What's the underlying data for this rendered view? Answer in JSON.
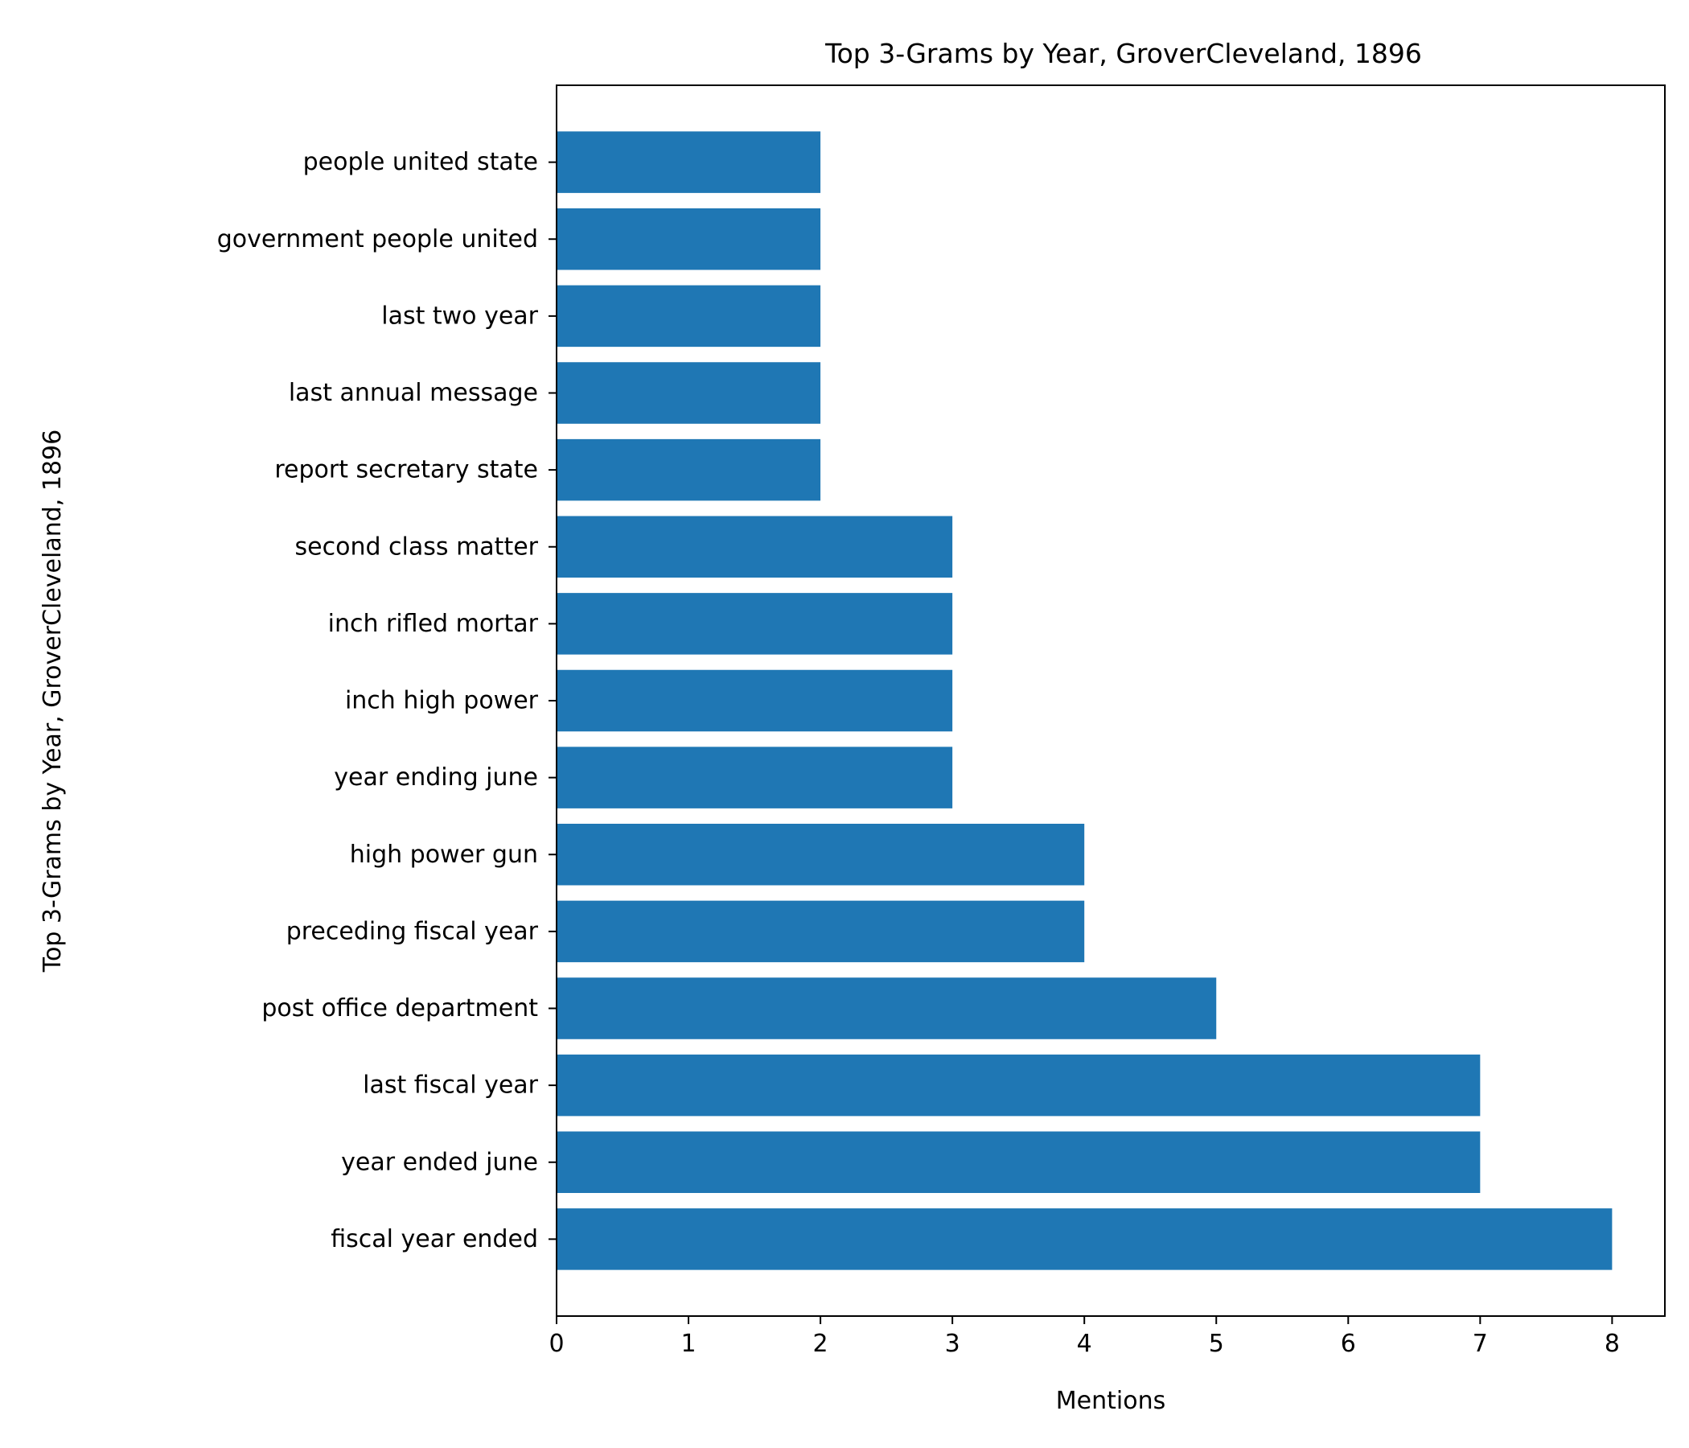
{
  "chart_data": {
    "type": "bar",
    "orientation": "horizontal",
    "title": "Top 3-Grams by Year, GroverCleveland, 1896",
    "xlabel": "Mentions",
    "ylabel": "Top 3-Grams by Year, GroverCleveland, 1896",
    "categories": [
      "fiscal year ended",
      "year ended june",
      "last fiscal year",
      "post office department",
      "preceding fiscal year",
      "high power gun",
      "year ending june",
      "inch high power",
      "inch rifled mortar",
      "second class matter",
      "report secretary state",
      "last annual message",
      "last two year",
      "government people united",
      "people united state"
    ],
    "values": [
      8,
      7,
      7,
      5,
      4,
      4,
      3,
      3,
      3,
      3,
      2,
      2,
      2,
      2,
      2
    ],
    "xlim": [
      0,
      8.4
    ],
    "xticks": [
      "0",
      "1",
      "2",
      "3",
      "4",
      "5",
      "6",
      "7",
      "8"
    ],
    "grid": false,
    "bar_color": "#1f77b4"
  }
}
